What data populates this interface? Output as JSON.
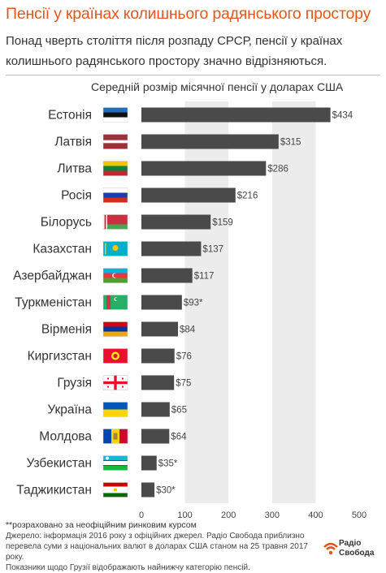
{
  "header": {
    "title": "Пенсії у країнах колишнього радянського простору",
    "subtitle": "Понад чверть століття після розпаду СРСР, пенсії у країнах колишнього радянського простору значно відрізняються."
  },
  "chart_data": {
    "type": "bar",
    "orientation": "horizontal",
    "title": "Середній розмір місячної пенсії у доларах США",
    "categories": [
      "Естонія",
      "Латвія",
      "Литва",
      "Росія",
      "Білорусь",
      "Казахстан",
      "Азербайджан",
      "Туркменістан",
      "Вірменія",
      "Киргизстан",
      "Грузія",
      "Україна",
      "Молдова",
      "Узбекистан",
      "Таджикистан"
    ],
    "values": [
      434,
      315,
      286,
      216,
      159,
      137,
      117,
      93,
      84,
      76,
      75,
      65,
      64,
      35,
      30
    ],
    "value_labels": [
      "$434",
      "$315",
      "$286",
      "$216",
      "$159",
      "$137",
      "$117",
      "$93*",
      "$84",
      "$76",
      "$75",
      "$65",
      "$64",
      "$35*",
      "$30*"
    ],
    "xlim": [
      0,
      500
    ],
    "xticks": [
      0,
      100,
      200,
      300,
      400,
      500
    ],
    "grid": "alternating bands",
    "bar_color": "#4a4a4a",
    "flags": [
      "estonia-flag",
      "latvia-flag",
      "lithuania-flag",
      "russia-flag",
      "belarus-flag",
      "kazakhstan-flag",
      "azerbaijan-flag",
      "turkmenistan-flag",
      "armenia-flag",
      "kyrgyzstan-flag",
      "georgia-flag",
      "ukraine-flag",
      "moldova-flag",
      "uzbekistan-flag",
      "tajikistan-flag"
    ]
  },
  "footer": {
    "footnote": "**розраховано за неофіційним ринковим курсом",
    "source_line1": "Джерело: інформація 2016 року з офіційних джерел. Радіо Свобода приблизно",
    "source_line2": "перевела суми з національних валют в доларах США станом на 25 травня 2017 року.",
    "source_line3": "Показники щодо Грузії відображають найнижчу категорію пенсій.",
    "logo_line1": "Радіо",
    "logo_line2": "Свобода"
  },
  "colors": {
    "accent": "#e2571c",
    "band": "#ececec",
    "bar": "#4a4a4a"
  }
}
